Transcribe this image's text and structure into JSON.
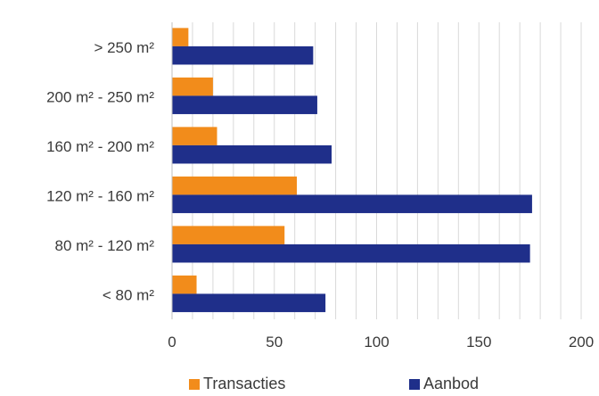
{
  "chart_data": {
    "type": "bar",
    "orientation": "horizontal",
    "categories": [
      "> 250 m²",
      "200 m² - 250 m²",
      "160 m² - 200 m²",
      "120 m² - 160 m²",
      "80 m² - 120 m²",
      "< 80 m²"
    ],
    "series": [
      {
        "name": "Transacties",
        "color": "#F28C1B",
        "values": [
          8,
          20,
          22,
          61,
          55,
          12
        ]
      },
      {
        "name": "Aanbod",
        "color": "#1F2F8A",
        "values": [
          69,
          71,
          78,
          176,
          175,
          75
        ]
      }
    ],
    "xlim": [
      0,
      200
    ],
    "x_ticks": [
      0,
      50,
      100,
      150,
      200
    ],
    "x_minor_step": 10,
    "grid": "vertical",
    "legend_position": "bottom"
  }
}
